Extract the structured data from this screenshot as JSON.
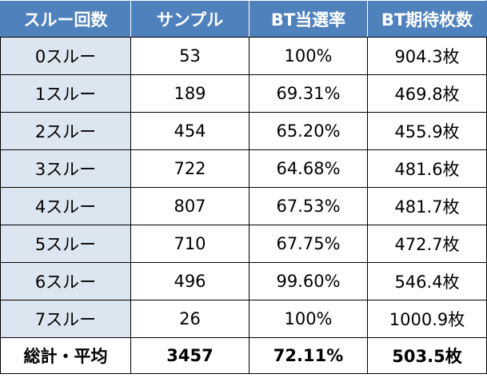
{
  "table": {
    "headers": [
      "スルー回数",
      "サンプル",
      "BT当選率",
      "BT期待枚数"
    ],
    "rows": [
      [
        "0スルー",
        "53",
        "100%",
        "904.3枚"
      ],
      [
        "1スルー",
        "189",
        "69.31%",
        "469.8枚"
      ],
      [
        "2スルー",
        "454",
        "65.20%",
        "455.9枚"
      ],
      [
        "3スルー",
        "722",
        "64.68%",
        "481.6枚"
      ],
      [
        "4スルー",
        "807",
        "67.53%",
        "481.7枚"
      ],
      [
        "5スルー",
        "710",
        "67.75%",
        "472.7枚"
      ],
      [
        "6スルー",
        "496",
        "99.60%",
        "546.4枚"
      ],
      [
        "7スルー",
        "26",
        "100%",
        "1000.9枚"
      ]
    ],
    "total": [
      "総計・平均",
      "3457",
      "72.11%",
      "503.5枚"
    ]
  },
  "colors": {
    "header_bg": "#4f81bd",
    "header_text": "#ffffff",
    "label_col_bg": "#dce6f1",
    "border": "#000000"
  }
}
